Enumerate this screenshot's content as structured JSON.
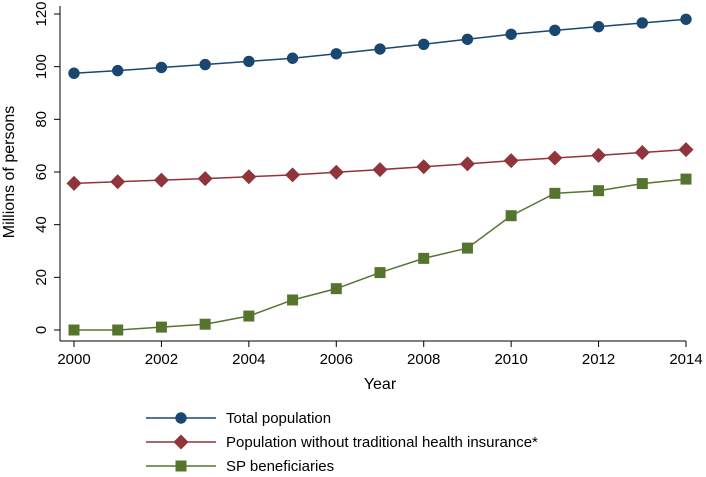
{
  "chart_data": {
    "type": "line",
    "title": "",
    "xlabel": "Year",
    "ylabel": "Millions of persons",
    "x": [
      2000,
      2001,
      2002,
      2003,
      2004,
      2005,
      2006,
      2007,
      2008,
      2009,
      2010,
      2011,
      2012,
      2013,
      2014
    ],
    "xticks": [
      2000,
      2002,
      2004,
      2006,
      2008,
      2010,
      2012,
      2014
    ],
    "yticks": [
      0,
      20,
      40,
      60,
      80,
      100,
      120
    ],
    "ylim": [
      -4,
      121
    ],
    "xlim": [
      2000,
      2014
    ],
    "grid": false,
    "legend_position": "bottom",
    "series": [
      {
        "name": "Total population",
        "marker": "circle",
        "color": "#1a476f",
        "values": [
          97.5,
          98.5,
          99.7,
          100.8,
          102.0,
          103.2,
          104.9,
          106.7,
          108.5,
          110.4,
          112.3,
          113.8,
          115.2,
          116.6,
          118.0
        ]
      },
      {
        "name": "Population without traditional health insurance*",
        "marker": "diamond",
        "color": "#90353b",
        "values": [
          55.7,
          56.3,
          56.9,
          57.5,
          58.2,
          58.9,
          59.9,
          60.9,
          62.0,
          63.1,
          64.3,
          65.3,
          66.3,
          67.4,
          68.5
        ]
      },
      {
        "name": "SP beneficiaries",
        "marker": "square",
        "color": "#55752f",
        "values": [
          0.0,
          0.0,
          1.1,
          2.2,
          5.3,
          11.4,
          15.7,
          21.8,
          27.2,
          31.1,
          43.4,
          51.9,
          52.9,
          55.6,
          57.3
        ]
      }
    ]
  }
}
